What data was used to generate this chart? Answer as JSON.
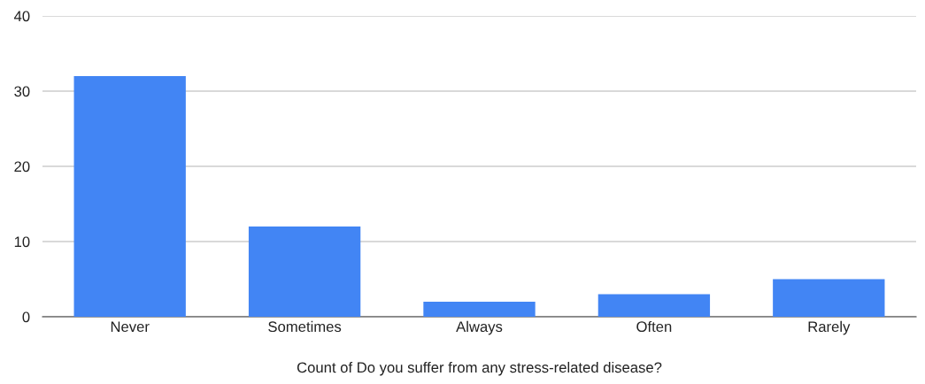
{
  "chart_data": {
    "type": "bar",
    "xlabel": "Count of Do you suffer from any stress-related disease?",
    "categories": [
      "Never",
      "Sometimes",
      "Always",
      "Often",
      "Rarely"
    ],
    "values": [
      32,
      12,
      2,
      3,
      5
    ],
    "color": "#4285f4",
    "ylim": [
      0,
      40
    ],
    "yticks": [
      0,
      10,
      20,
      30,
      40
    ],
    "grid": "y",
    "legend": false
  }
}
